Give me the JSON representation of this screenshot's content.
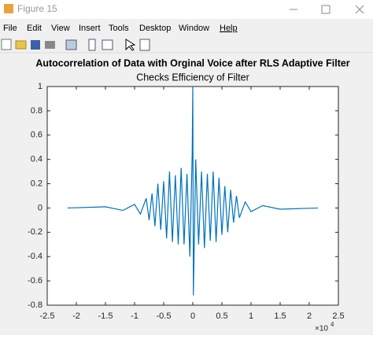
{
  "window": {
    "title": "Figure 15",
    "menu": [
      "File",
      "Edit",
      "View",
      "Insert",
      "Tools",
      "Desktop",
      "Window",
      "Help"
    ]
  },
  "chart_data": {
    "type": "line",
    "title": "Autocorrelation of Data with Orginal Voice after RLS Adaptive Filter",
    "subtitle": "Checks Efficiency of Filter",
    "x": [
      -2.15,
      -1.5,
      -1.2,
      -1.0,
      -0.9,
      -0.8,
      -0.75,
      -0.7,
      -0.65,
      -0.6,
      -0.55,
      -0.5,
      -0.45,
      -0.4,
      -0.35,
      -0.3,
      -0.25,
      -0.2,
      -0.15,
      -0.1,
      -0.05,
      -0.01,
      0,
      0.01,
      0.05,
      0.1,
      0.15,
      0.2,
      0.25,
      0.3,
      0.35,
      0.4,
      0.45,
      0.5,
      0.55,
      0.6,
      0.65,
      0.7,
      0.75,
      0.8,
      0.9,
      1.0,
      1.2,
      1.5,
      2.15
    ],
    "values": [
      0,
      0.01,
      -0.02,
      0.03,
      -0.05,
      0.08,
      -0.1,
      0.12,
      -0.15,
      0.2,
      -0.18,
      0.22,
      -0.25,
      0.3,
      -0.28,
      0.27,
      -0.3,
      0.33,
      -0.3,
      0.28,
      -0.4,
      0.45,
      1,
      -0.72,
      0.4,
      -0.3,
      0.3,
      -0.33,
      0.28,
      -0.27,
      0.3,
      -0.28,
      0.25,
      -0.22,
      0.18,
      -0.2,
      0.15,
      -0.12,
      0.1,
      -0.08,
      0.05,
      -0.03,
      0.02,
      -0.01,
      0
    ],
    "color": "#0072bd",
    "xlim": [
      -2.5,
      2.5
    ],
    "xticks": [
      -2.5,
      -2,
      -1.5,
      -1,
      -0.5,
      0,
      0.5,
      1,
      1.5,
      2,
      2.5
    ],
    "ylim": [
      -0.8,
      1
    ],
    "yticks": [
      -0.8,
      -0.6,
      -0.4,
      -0.2,
      0,
      0.2,
      0.4,
      0.6,
      0.8,
      1
    ],
    "x_multiplier": "×10",
    "x_exponent": "4",
    "grid": false
  }
}
